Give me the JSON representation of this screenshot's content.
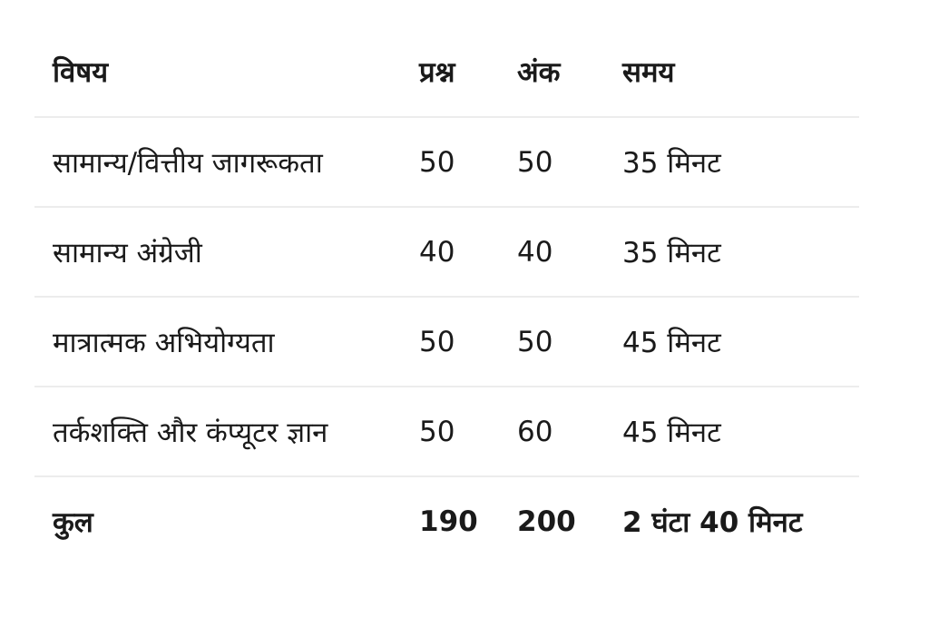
{
  "table": {
    "headers": [
      "विषय",
      "प्रश्न",
      "अंक",
      "समय"
    ],
    "rows": [
      [
        "सामान्य/वित्तीय जागरूकता",
        "50",
        "50",
        "35 मिनट"
      ],
      [
        "सामान्य अंग्रेजी",
        "40",
        "40",
        "35 मिनट"
      ],
      [
        "मात्रात्मक अभियोग्यता",
        "50",
        "50",
        "45 मिनट"
      ],
      [
        "तर्कशक्ति और कंप्यूटर ज्ञान",
        "50",
        "60",
        "45 मिनट"
      ]
    ],
    "total": [
      "कुल",
      "190",
      "200",
      "2 घंटा 40 मिनट"
    ]
  }
}
